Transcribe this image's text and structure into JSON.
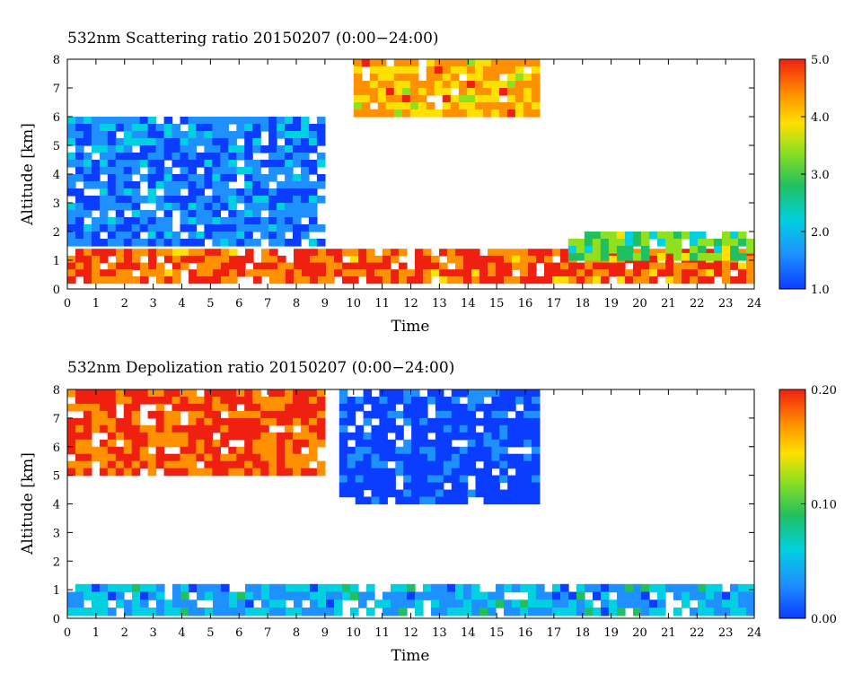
{
  "chart_data": [
    {
      "type": "heatmap",
      "title": "532nm Scattering ratio  20150207 (0:00−24:00)",
      "xlabel": "Time",
      "ylabel": "Altitude [km]",
      "xlim": [
        0,
        24
      ],
      "ylim": [
        0,
        8
      ],
      "x_ticks": [
        0,
        1,
        2,
        3,
        4,
        5,
        6,
        7,
        8,
        9,
        10,
        11,
        12,
        13,
        14,
        15,
        16,
        17,
        18,
        19,
        20,
        21,
        22,
        23,
        24
      ],
      "y_ticks": [
        0,
        1,
        2,
        3,
        4,
        5,
        6,
        7,
        8
      ],
      "colorbar": {
        "min": 1.0,
        "max": 5.0,
        "ticks": [
          "1.0",
          "2.0",
          "3.0",
          "4.0",
          "5.0"
        ]
      },
      "features": [
        {
          "desc": "boundary layer",
          "x_range": [
            0,
            24
          ],
          "alt_range": [
            0.2,
            1.4
          ],
          "value": 4.5
        },
        {
          "desc": "low cloud",
          "x_range": [
            17.5,
            24
          ],
          "alt_range": [
            1.0,
            2.0
          ],
          "value": 3.0
        },
        {
          "desc": "mid cloud layer",
          "x_range": [
            0,
            9
          ],
          "alt_range": [
            1.5,
            6.0
          ],
          "value": 1.6
        },
        {
          "desc": "upper cloud",
          "x_range": [
            10,
            16.5
          ],
          "alt_range": [
            6.0,
            8.0
          ],
          "value": 4.0
        }
      ]
    },
    {
      "type": "heatmap",
      "title": "532nm Depolization ratio  20150207 (0:00−24:00)",
      "xlabel": "Time",
      "ylabel": "Altitude [km]",
      "xlim": [
        0,
        24
      ],
      "ylim": [
        0,
        8
      ],
      "x_ticks": [
        0,
        1,
        2,
        3,
        4,
        5,
        6,
        7,
        8,
        9,
        10,
        11,
        12,
        13,
        14,
        15,
        16,
        17,
        18,
        19,
        20,
        21,
        22,
        23,
        24
      ],
      "y_ticks": [
        0,
        1,
        2,
        3,
        4,
        5,
        6,
        7,
        8
      ],
      "colorbar": {
        "min": 0.0,
        "max": 0.2,
        "ticks": [
          "0.00",
          "0.10",
          "0.20"
        ]
      },
      "features": [
        {
          "desc": "boundary layer",
          "x_range": [
            0,
            24
          ],
          "alt_range": [
            0.1,
            1.2
          ],
          "value": 0.05
        },
        {
          "desc": "upper low depol",
          "x_range": [
            9.5,
            16.5
          ],
          "alt_range": [
            4.0,
            8.0
          ],
          "value": 0.01
        },
        {
          "desc": "high depol edges",
          "x_range": [
            0,
            9
          ],
          "alt_range": [
            5.0,
            8.0
          ],
          "value": 0.18
        }
      ]
    }
  ]
}
